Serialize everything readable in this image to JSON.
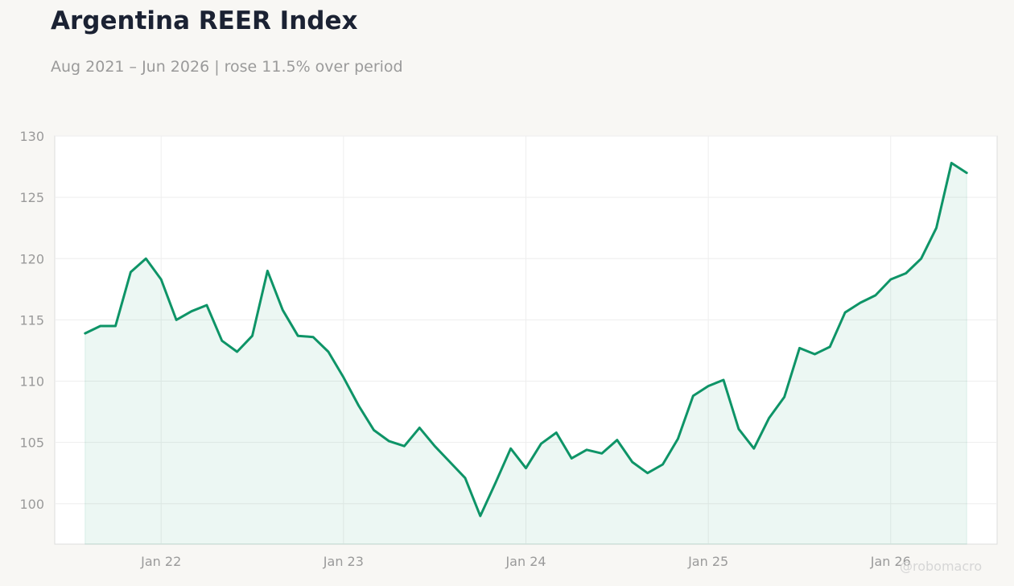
{
  "title": "Argentina REER Index",
  "subtitle": "Aug 2021 – Jun 2026 | rose 11.5% over period",
  "watermark": "@robomacro",
  "colors": {
    "line": "#0e9467",
    "fill": "#0e9467",
    "grid": "#eeeeee",
    "frame": "#dddddd",
    "tick_text": "#9a9a9a",
    "background": "#f8f7f4",
    "plot_background": "#ffffff"
  },
  "chart_data": {
    "type": "area",
    "title": "Argentina REER Index",
    "subtitle": "Aug 2021 – Jun 2026 | rose 11.5% over period",
    "xlabel": "",
    "ylabel": "",
    "ylim": [
      96.7,
      130
    ],
    "xlim": [
      "2021-06-01",
      "2026-08-01"
    ],
    "grid": true,
    "legend": "none",
    "yticks": [
      100,
      105,
      110,
      115,
      120,
      125,
      130
    ],
    "xticks": [
      {
        "date": "2022-01-01",
        "label": "Jan 22"
      },
      {
        "date": "2023-01-01",
        "label": "Jan 23"
      },
      {
        "date": "2024-01-01",
        "label": "Jan 24"
      },
      {
        "date": "2025-01-01",
        "label": "Jan 25"
      },
      {
        "date": "2026-01-01",
        "label": "Jan 26"
      }
    ],
    "x": [
      "2021-08",
      "2021-09",
      "2021-10",
      "2021-11",
      "2021-12",
      "2022-01",
      "2022-02",
      "2022-03",
      "2022-04",
      "2022-05",
      "2022-06",
      "2022-07",
      "2022-08",
      "2022-09",
      "2022-10",
      "2022-11",
      "2022-12",
      "2023-01",
      "2023-02",
      "2023-03",
      "2023-04",
      "2023-05",
      "2023-06",
      "2023-07",
      "2023-08",
      "2023-09",
      "2023-10",
      "2023-11",
      "2023-12",
      "2024-01",
      "2024-02",
      "2024-03",
      "2024-04",
      "2024-05",
      "2024-06",
      "2024-07",
      "2024-08",
      "2024-09",
      "2024-10",
      "2024-11",
      "2024-12",
      "2025-01",
      "2025-02",
      "2025-03",
      "2025-04",
      "2025-05",
      "2025-06",
      "2025-07",
      "2025-08",
      "2025-09",
      "2025-10",
      "2025-11",
      "2025-12",
      "2026-01",
      "2026-02",
      "2026-03",
      "2026-04",
      "2026-05",
      "2026-06"
    ],
    "series": [
      {
        "values": [
          113.9,
          114.5,
          114.5,
          118.9,
          120.0,
          118.3,
          115.0,
          115.7,
          116.2,
          113.3,
          112.4,
          113.7,
          119.0,
          115.8,
          113.7,
          113.6,
          112.4,
          110.3,
          108.0,
          106.0,
          105.1,
          104.7,
          106.2,
          104.7,
          103.4,
          102.1,
          99.0,
          101.7,
          104.5,
          102.9,
          104.9,
          105.8,
          103.7,
          104.4,
          104.1,
          105.2,
          103.4,
          102.5,
          103.2,
          105.3,
          108.8,
          109.6,
          110.1,
          106.1,
          104.5,
          107.0,
          108.7,
          112.7,
          112.2,
          112.8,
          115.6,
          116.4,
          117.0,
          118.3,
          118.8,
          120.0,
          122.5,
          127.8,
          127.0
        ]
      }
    ]
  }
}
